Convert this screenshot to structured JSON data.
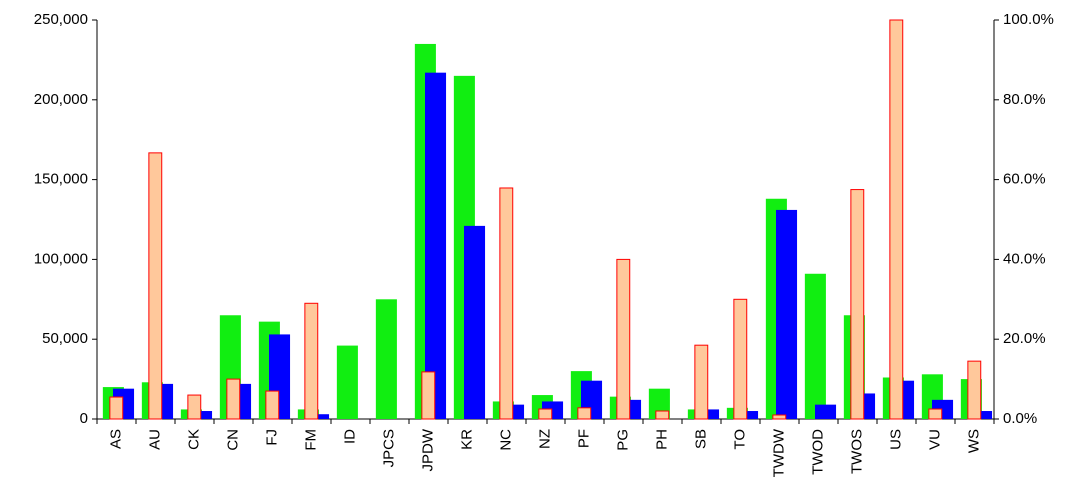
{
  "chart_data": {
    "type": "bar",
    "categories": [
      "AS",
      "AU",
      "CK",
      "CN",
      "FJ",
      "FM",
      "ID",
      "JPCS",
      "JPDW",
      "KR",
      "NC",
      "NZ",
      "PF",
      "PG",
      "PH",
      "SB",
      "TO",
      "TWDW",
      "TWOD",
      "TWOS",
      "US",
      "VU",
      "WS"
    ],
    "series": [
      {
        "color": "#11ee11",
        "values": [
          20000,
          23000,
          6000,
          65000,
          61000,
          6000,
          46000,
          75000,
          235000,
          215000,
          11000,
          15000,
          30000,
          14000,
          19000,
          6000,
          7000,
          138000,
          91000,
          65000,
          26000,
          28000,
          25000
        ]
      },
      {
        "color": "#0000ff",
        "values": [
          19000,
          22000,
          5000,
          22000,
          53000,
          3000,
          0,
          0,
          217000,
          121000,
          9000,
          11000,
          24000,
          12000,
          0,
          6000,
          5000,
          131000,
          9000,
          16000,
          24000,
          12000,
          5000
        ]
      },
      {
        "color": "#ffc89b",
        "edge_color": "#ff0000",
        "axis": "y2",
        "values": [
          5.5,
          66.7,
          6,
          10,
          7,
          29,
          0,
          0,
          11.8,
          0,
          57.9,
          2.5,
          2.8,
          40,
          2,
          18.5,
          30,
          1,
          0,
          57.5,
          100,
          2.5,
          14.5
        ]
      }
    ],
    "ylim": [
      0,
      250000
    ],
    "yticks": [
      0,
      {
        "value": 50000,
        "label": "50,000"
      },
      {
        "value": 100000,
        "label": "100,000"
      },
      {
        "value": 150000,
        "label": "150,000"
      },
      {
        "value": 200000,
        "label": "200,000"
      },
      {
        "value": 250000,
        "label": "250,000"
      }
    ],
    "y2lim": [
      0,
      100
    ],
    "y2ticks": [
      {
        "value": 0,
        "label": "0.0%"
      },
      {
        "value": 20,
        "label": "20.0%"
      },
      {
        "value": 40,
        "label": "40.0%"
      },
      {
        "value": 60,
        "label": "60.0%"
      },
      {
        "value": 80,
        "label": "80.0%"
      },
      {
        "value": 100,
        "label": "100.0%"
      }
    ]
  }
}
